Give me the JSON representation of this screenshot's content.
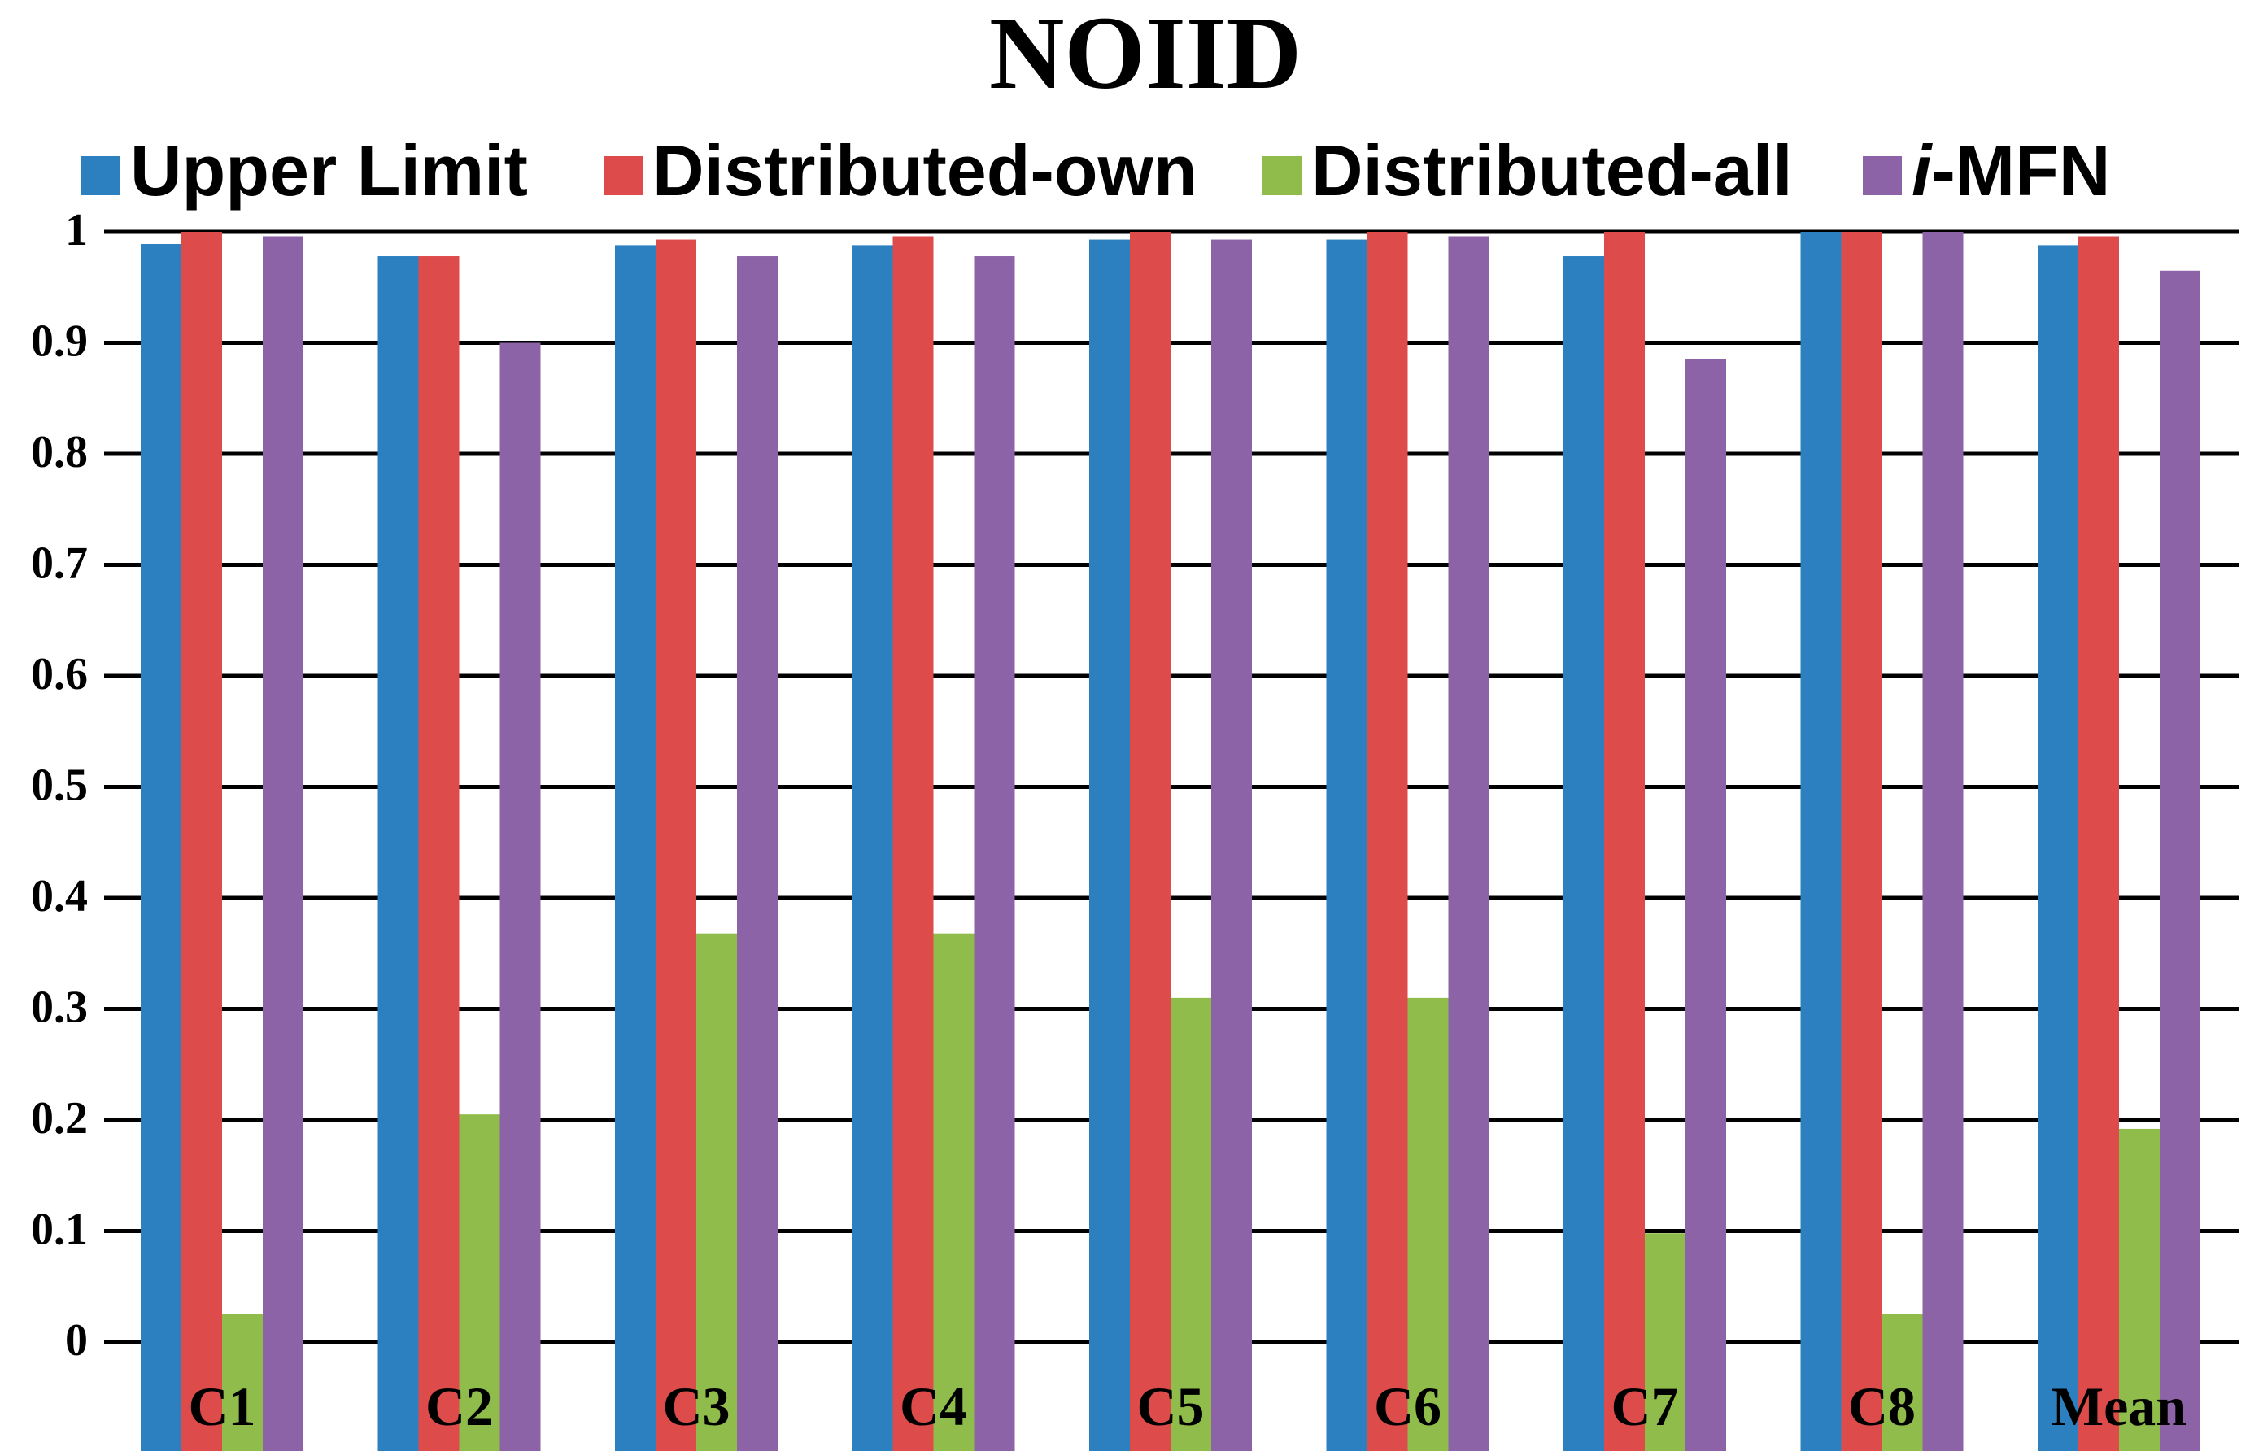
{
  "chart_data": {
    "type": "bar",
    "title": "NOIID",
    "xlabel": "",
    "ylabel": "",
    "categories": [
      "C1",
      "C2",
      "C3",
      "C4",
      "C5",
      "C6",
      "C7",
      "C8",
      "Mean"
    ],
    "y_ticks": [
      "1",
      "0.9",
      "0.8",
      "0.7",
      "0.6",
      "0.5",
      "0.4",
      "0.3",
      "0.2",
      "0.1",
      "0"
    ],
    "ylim": [
      -0.1,
      1
    ],
    "grid": true,
    "legend_position": "top",
    "series": [
      {
        "name": "Upper Limit",
        "name_prefix": "",
        "color": "#2C80BF",
        "values": [
          0.989,
          0.978,
          0.988,
          0.988,
          0.993,
          0.993,
          0.978,
          1.0,
          0.988
        ]
      },
      {
        "name": "Distributed-own",
        "name_prefix": "",
        "color": "#DD4B4B",
        "values": [
          1.0,
          0.978,
          0.993,
          0.996,
          1.0,
          1.0,
          1.0,
          1.0,
          0.996
        ]
      },
      {
        "name": "Distributed-all",
        "name_prefix": "",
        "color": "#8FBC4A",
        "values": [
          0.025,
          0.205,
          0.368,
          0.368,
          0.31,
          0.31,
          0.098,
          0.025,
          0.192
        ]
      },
      {
        "name": "MFN",
        "name_prefix": "i",
        "color": "#8B63A6",
        "values": [
          0.996,
          0.9,
          0.978,
          0.978,
          0.993,
          0.996,
          0.885,
          1.0,
          0.965
        ]
      }
    ]
  }
}
